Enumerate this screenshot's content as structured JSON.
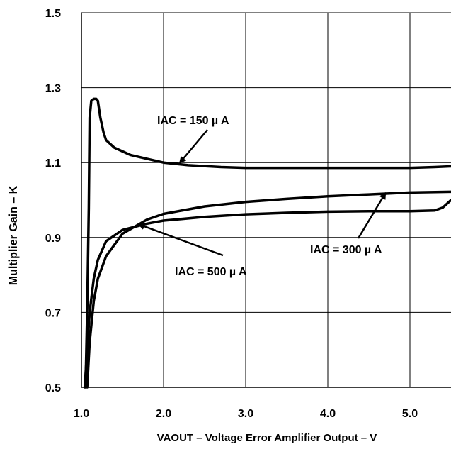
{
  "chart_data": {
    "type": "line",
    "title": "",
    "xlabel": "VAOUT – Voltage Error Amplifier Output – V",
    "ylabel": "Multiplier Gain – K",
    "xlim": [
      1.0,
      5.5
    ],
    "ylim": [
      0.5,
      1.5
    ],
    "x_ticks": [
      1.0,
      2.0,
      3.0,
      4.0,
      5.0
    ],
    "x_tick_labels": [
      "1.0",
      "2.0",
      "3.0",
      "4.0",
      "5.0"
    ],
    "y_ticks": [
      0.5,
      0.7,
      0.9,
      1.1,
      1.3,
      1.5
    ],
    "y_tick_labels": [
      "0.5",
      "0.7",
      "0.9",
      "1.1",
      "1.3",
      "1.5"
    ],
    "grid": true,
    "series": [
      {
        "name": "IAC = 150 µA",
        "x": [
          1.05,
          1.07,
          1.09,
          1.1,
          1.12,
          1.15,
          1.18,
          1.2,
          1.23,
          1.27,
          1.3,
          1.4,
          1.6,
          1.8,
          2.0,
          2.3,
          2.7,
          3.0,
          4.0,
          5.0,
          5.3,
          5.5
        ],
        "y": [
          0.5,
          0.7,
          0.98,
          1.22,
          1.265,
          1.27,
          1.27,
          1.265,
          1.22,
          1.18,
          1.16,
          1.14,
          1.12,
          1.11,
          1.1,
          1.093,
          1.088,
          1.086,
          1.086,
          1.086,
          1.088,
          1.09
        ]
      },
      {
        "name": "IAC = 300 µA",
        "x": [
          1.07,
          1.1,
          1.15,
          1.2,
          1.3,
          1.5,
          1.8,
          2.0,
          2.5,
          3.0,
          3.5,
          4.0,
          4.5,
          5.0,
          5.5
        ],
        "y": [
          0.5,
          0.62,
          0.73,
          0.79,
          0.85,
          0.91,
          0.948,
          0.963,
          0.983,
          0.995,
          1.003,
          1.01,
          1.015,
          1.02,
          1.022
        ]
      },
      {
        "name": "IAC = 500 µA",
        "x": [
          1.04,
          1.07,
          1.1,
          1.15,
          1.2,
          1.3,
          1.5,
          1.8,
          2.0,
          2.5,
          3.0,
          3.5,
          4.0,
          4.5,
          5.0,
          5.3,
          5.4,
          5.5
        ],
        "y": [
          0.5,
          0.6,
          0.7,
          0.79,
          0.84,
          0.89,
          0.92,
          0.937,
          0.945,
          0.955,
          0.962,
          0.966,
          0.969,
          0.97,
          0.97,
          0.972,
          0.98,
          1.0
        ]
      }
    ],
    "annotations": [
      {
        "text": "IAC = 150  µ A",
        "target": {
          "x": 2.2,
          "y": 1.1
        }
      },
      {
        "text": "IAC = 300 µ A",
        "target": {
          "x": 4.7,
          "y": 1.018
        }
      },
      {
        "text": "IAC = 500  µ A",
        "target": {
          "x": 1.7,
          "y": 0.935
        }
      }
    ],
    "line_color": "#000000",
    "grid_color": "#000000"
  }
}
